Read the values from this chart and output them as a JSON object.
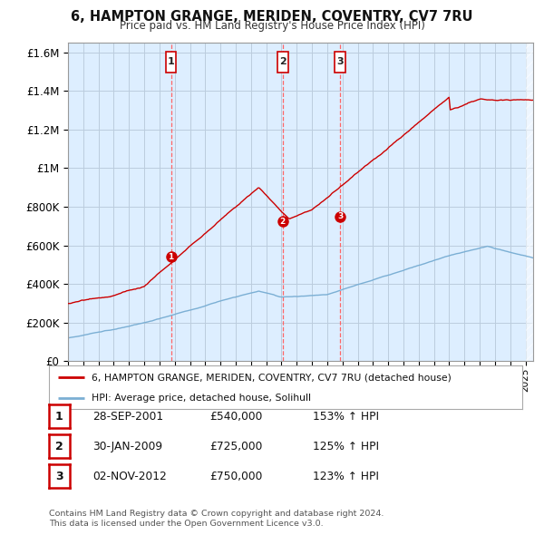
{
  "title": "6, HAMPTON GRANGE, MERIDEN, COVENTRY, CV7 7RU",
  "subtitle": "Price paid vs. HM Land Registry's House Price Index (HPI)",
  "ylabel_ticks": [
    "£0",
    "£200K",
    "£400K",
    "£600K",
    "£800K",
    "£1M",
    "£1.2M",
    "£1.4M",
    "£1.6M"
  ],
  "ytick_values": [
    0,
    200000,
    400000,
    600000,
    800000,
    1000000,
    1200000,
    1400000,
    1600000
  ],
  "ylim": [
    0,
    1650000
  ],
  "xlim_start": 1995.0,
  "xlim_end": 2025.5,
  "sale_dates_num": [
    2001.75,
    2009.08,
    2012.84
  ],
  "sale_prices": [
    540000,
    725000,
    750000
  ],
  "sale_labels": [
    "1",
    "2",
    "3"
  ],
  "legend_red": "6, HAMPTON GRANGE, MERIDEN, COVENTRY, CV7 7RU (detached house)",
  "legend_blue": "HPI: Average price, detached house, Solihull",
  "table_rows": [
    [
      "1",
      "28-SEP-2001",
      "£540,000",
      "153% ↑ HPI"
    ],
    [
      "2",
      "30-JAN-2009",
      "£725,000",
      "125% ↑ HPI"
    ],
    [
      "3",
      "02-NOV-2012",
      "£750,000",
      "123% ↑ HPI"
    ]
  ],
  "footnote1": "Contains HM Land Registry data © Crown copyright and database right 2024.",
  "footnote2": "This data is licensed under the Open Government Licence v3.0.",
  "red_color": "#cc0000",
  "blue_color": "#7bafd4",
  "dashed_vline_color": "#ff6666",
  "background_color": "#ffffff",
  "chart_bg": "#ddeeff",
  "grid_color": "#bbccdd"
}
